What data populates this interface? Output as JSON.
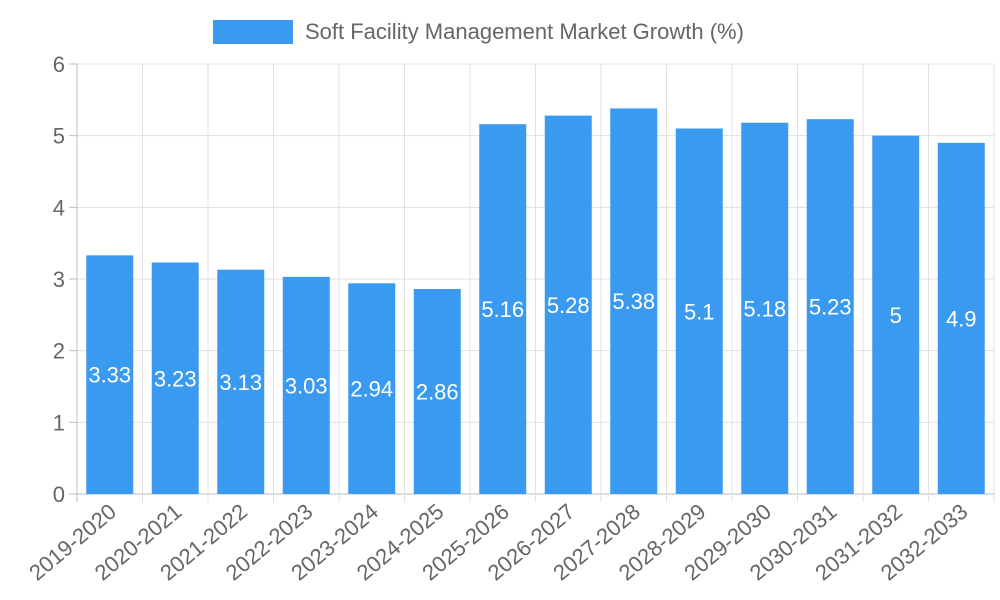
{
  "chart_data": {
    "type": "bar",
    "categories": [
      "2019-2020",
      "2020-2021",
      "2021-2022",
      "2022-2023",
      "2023-2024",
      "2024-2025",
      "2025-2026",
      "2026-2027",
      "2027-2028",
      "2028-2029",
      "2029-2030",
      "2030-2031",
      "2031-2032",
      "2032-2033"
    ],
    "series": [
      {
        "name": "Soft Facility Management Market Growth (%)",
        "values": [
          3.33,
          3.23,
          3.13,
          3.03,
          2.94,
          2.86,
          5.16,
          5.28,
          5.38,
          5.1,
          5.18,
          5.23,
          5,
          4.9
        ],
        "color": "#3a9af0"
      }
    ],
    "legend": {
      "label": "Soft Facility Management Market Growth (%)",
      "position": "top-center"
    },
    "ylim": [
      0,
      6
    ],
    "yticks": [
      0,
      1,
      2,
      3,
      4,
      5,
      6
    ],
    "grid": true,
    "data_labels": true
  }
}
